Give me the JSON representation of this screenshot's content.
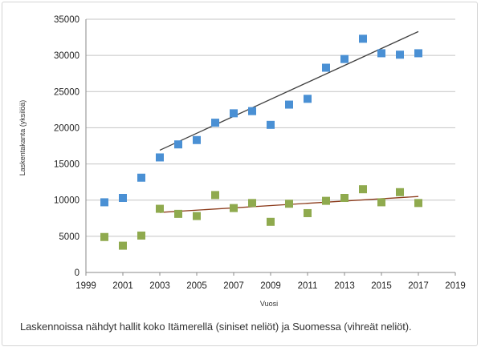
{
  "chart_data": {
    "type": "scatter",
    "title": "",
    "xlabel": "Vuosi",
    "ylabel": "Laskentakanta (yksilöä)",
    "xlim": [
      1999,
      2019
    ],
    "ylim": [
      0,
      35000
    ],
    "x_ticks": [
      "1999",
      "2001",
      "2003",
      "2005",
      "2007",
      "2009",
      "2011",
      "2013",
      "2015",
      "2017",
      "2019"
    ],
    "y_ticks": [
      "0",
      "5000",
      "10000",
      "15000",
      "20000",
      "25000",
      "30000",
      "35000"
    ],
    "grid": "horizontal",
    "legend": "none",
    "series": [
      {
        "color": "#4a90d4",
        "marker": "square",
        "x": [
          2000,
          2001,
          2002,
          2003,
          2004,
          2005,
          2006,
          2007,
          2008,
          2009,
          2010,
          2011,
          2012,
          2013,
          2014,
          2015,
          2016,
          2017
        ],
        "y": [
          9700,
          10300,
          13100,
          15900,
          17700,
          18300,
          20700,
          22000,
          22300,
          20400,
          23200,
          24000,
          28300,
          29500,
          32300,
          30300,
          30100,
          30300
        ],
        "trend": {
          "x": [
            2003,
            2017
          ],
          "y": [
            16900,
            33300
          ],
          "color": "#404040"
        }
      },
      {
        "color": "#8faa4e",
        "marker": "square",
        "x": [
          2000,
          2001,
          2002,
          2003,
          2004,
          2005,
          2006,
          2007,
          2008,
          2009,
          2010,
          2011,
          2012,
          2013,
          2014,
          2015,
          2016,
          2017
        ],
        "y": [
          4900,
          3700,
          5100,
          8800,
          8100,
          7800,
          10700,
          8900,
          9600,
          7000,
          9500,
          8200,
          9900,
          10300,
          11500,
          9700,
          11100,
          9600
        ],
        "trend": {
          "x": [
            2003,
            2017
          ],
          "y": [
            8300,
            10500
          ],
          "color": "#8b3a1a"
        }
      }
    ]
  },
  "caption": "Laskennoissa nähdyt hallit koko Itämerellä (siniset neliöt) ja Suomessa (vihreät neliöt)."
}
